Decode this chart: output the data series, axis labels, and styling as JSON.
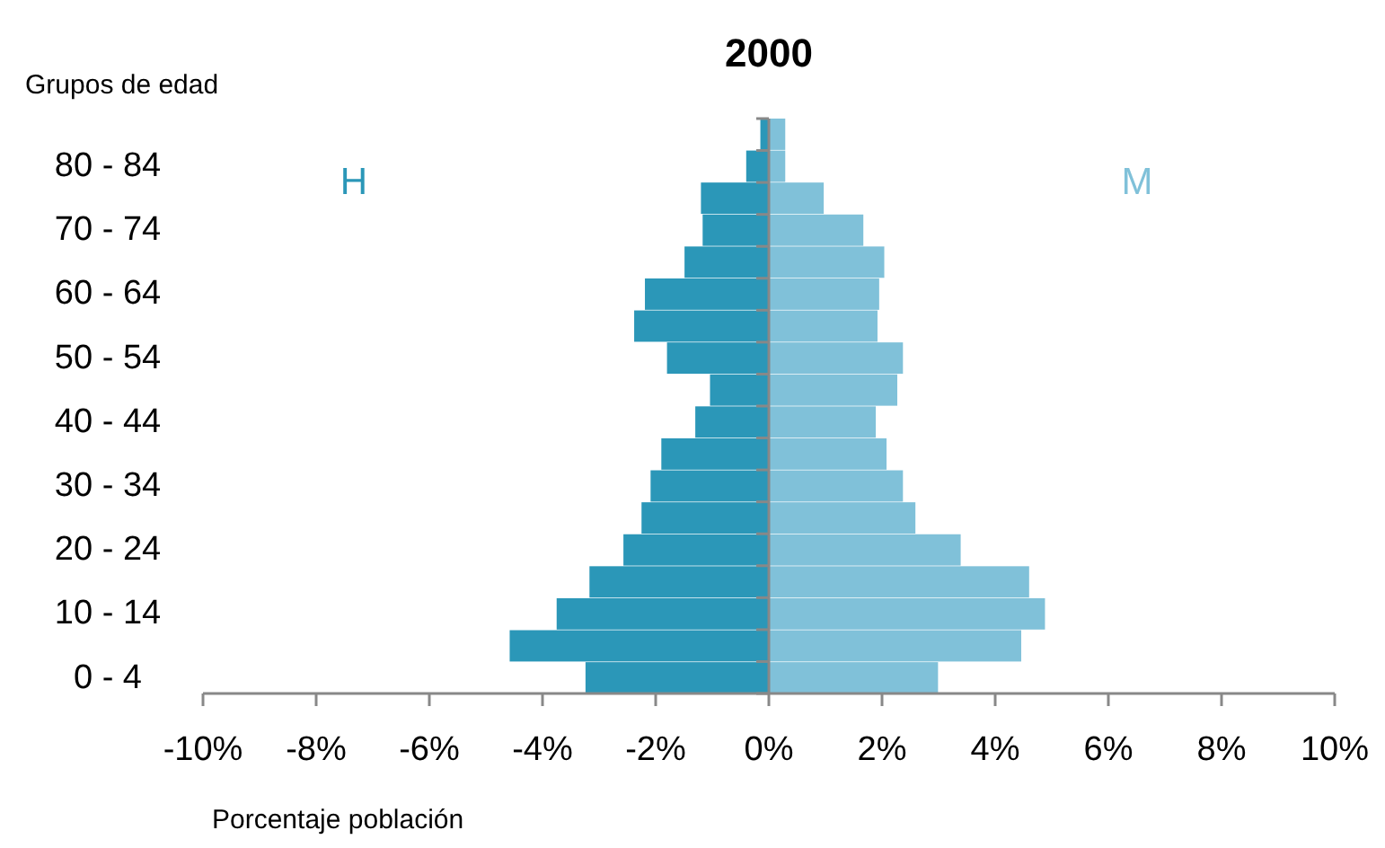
{
  "chart_data": {
    "type": "bar",
    "orientation": "horizontal",
    "stacked": true,
    "title": "2000",
    "ylabel": "Grupos de edad",
    "xlabel": "Porcentaje población",
    "categories": [
      null,
      "80 - 84",
      null,
      "70 - 74",
      null,
      "60 - 64",
      null,
      "50 - 54",
      null,
      "40 - 44",
      null,
      "30 - 34",
      null,
      "20 - 24",
      null,
      "10 - 14",
      null,
      "0 - 4"
    ],
    "series": [
      {
        "name": "H",
        "color": "#2b97b8",
        "values": [
          -0.15,
          -0.4,
          -1.2,
          -1.17,
          -1.49,
          -2.19,
          -2.38,
          -1.8,
          -1.04,
          -1.3,
          -1.9,
          -2.09,
          -2.25,
          -2.57,
          -3.17,
          -3.75,
          -4.58,
          -3.24
        ]
      },
      {
        "name": "M",
        "color": "#80c1d9",
        "values": [
          0.29,
          0.29,
          0.97,
          1.67,
          2.04,
          1.95,
          1.92,
          2.37,
          2.27,
          1.89,
          2.08,
          2.37,
          2.59,
          3.39,
          4.6,
          4.88,
          4.46,
          2.99
        ]
      }
    ],
    "xlim": [
      -10,
      10
    ],
    "xticks": [
      {
        "value": -10,
        "label": "-10%"
      },
      {
        "value": -8,
        "label": "-8%"
      },
      {
        "value": -6,
        "label": "-6%"
      },
      {
        "value": -4,
        "label": "-4%"
      },
      {
        "value": -2,
        "label": "-2%"
      },
      {
        "value": 0,
        "label": "0%"
      },
      {
        "value": 2,
        "label": "2%"
      },
      {
        "value": 4,
        "label": "4%"
      },
      {
        "value": 6,
        "label": "6%"
      },
      {
        "value": 8,
        "label": "8%"
      },
      {
        "value": 10,
        "label": "10%"
      }
    ],
    "legend": false
  }
}
